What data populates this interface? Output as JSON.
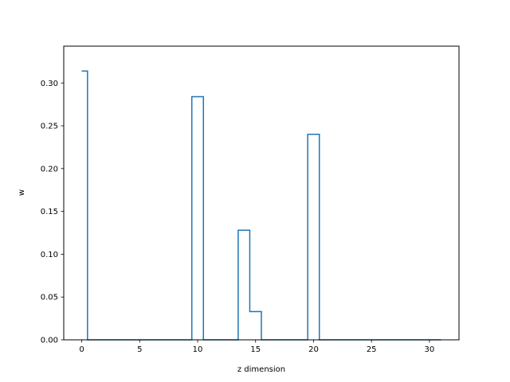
{
  "chart_data": {
    "type": "line",
    "drawstyle": "steps-mid",
    "xlabel": "z dimension",
    "ylabel": "w",
    "xlim": [
      -1.55,
      32.55
    ],
    "ylim": [
      0,
      0.343
    ],
    "xticks": [
      0,
      5,
      10,
      15,
      20,
      25,
      30
    ],
    "xtick_labels": [
      "0",
      "5",
      "10",
      "15",
      "20",
      "25",
      "30"
    ],
    "yticks": [
      0.0,
      0.05,
      0.1,
      0.15,
      0.2,
      0.25,
      0.3
    ],
    "ytick_labels": [
      "0.00",
      "0.05",
      "0.10",
      "0.15",
      "0.20",
      "0.25",
      "0.30"
    ],
    "grid": false,
    "series": [
      {
        "color": "#1f77b4",
        "x": [
          0,
          1,
          2,
          3,
          4,
          5,
          6,
          7,
          8,
          9,
          10,
          11,
          12,
          13,
          14,
          15,
          16,
          17,
          18,
          19,
          20,
          21,
          22,
          23,
          24,
          25,
          26,
          27,
          28,
          29,
          30,
          31
        ],
        "values": [
          0.314,
          0,
          0,
          0,
          0,
          0,
          0,
          0,
          0,
          0,
          0.284,
          0,
          0,
          0,
          0.128,
          0.033,
          0,
          0,
          0,
          0,
          0.24,
          0,
          0,
          0,
          0,
          0,
          0,
          0,
          0,
          0,
          0,
          0
        ]
      }
    ]
  }
}
